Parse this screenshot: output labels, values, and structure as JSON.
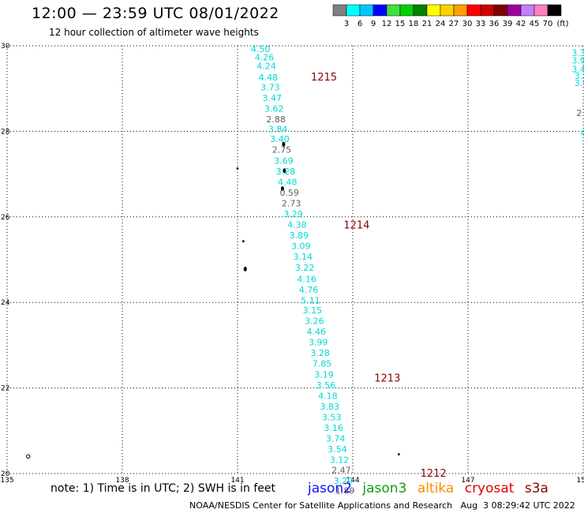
{
  "header": {
    "title": "12:00 — 23:59 UTC 08/01/2022",
    "subtitle": "12 hour collection of altimeter wave heights"
  },
  "colorbar": {
    "colors": [
      "#808080",
      "#00ffff",
      "#00c8ff",
      "#0000ff",
      "#40e040",
      "#00d000",
      "#008000",
      "#ffff00",
      "#ffd000",
      "#ffa000",
      "#ff0000",
      "#d00000",
      "#800000",
      "#a000a0",
      "#c080ff",
      "#ff80c0",
      "#000000"
    ],
    "labels": [
      "3",
      "6",
      "9",
      "12",
      "15",
      "18",
      "21",
      "24",
      "27",
      "30",
      "33",
      "36",
      "39",
      "42",
      "45",
      "70"
    ],
    "unit": "(ft)"
  },
  "map": {
    "lon_range": [
      135,
      150
    ],
    "lat_range": [
      20,
      30
    ],
    "lon_ticks": [
      "135",
      "138",
      "141",
      "144",
      "147",
      "150"
    ],
    "lat_ticks": [
      "20",
      "22",
      "24",
      "26",
      "28",
      "30"
    ],
    "colors": {
      "jason3_cyan": "#00d8d8",
      "gray": "#606060",
      "time_label": "#8b0000",
      "grid": "#000000"
    }
  },
  "track": {
    "values": [
      {
        "lon": 141.6,
        "lat": 29.93,
        "v": "4.50",
        "c": "cyan"
      },
      {
        "lon": 141.7,
        "lat": 29.73,
        "v": "4.26",
        "c": "cyan"
      },
      {
        "lon": 141.75,
        "lat": 29.53,
        "v": "4.24",
        "c": "cyan"
      },
      {
        "lon": 141.8,
        "lat": 29.26,
        "v": "4.48",
        "c": "cyan"
      },
      {
        "lon": 141.85,
        "lat": 29.03,
        "v": "3.73",
        "c": "cyan"
      },
      {
        "lon": 141.9,
        "lat": 28.78,
        "v": "3.47",
        "c": "cyan"
      },
      {
        "lon": 141.95,
        "lat": 28.53,
        "v": "3.62",
        "c": "cyan"
      },
      {
        "lon": 142.0,
        "lat": 28.28,
        "v": "2.88",
        "c": "gray"
      },
      {
        "lon": 142.05,
        "lat": 28.05,
        "v": "3.84",
        "c": "cyan"
      },
      {
        "lon": 142.1,
        "lat": 27.82,
        "v": "3.40",
        "c": "cyan"
      },
      {
        "lon": 142.15,
        "lat": 27.57,
        "v": "2.75",
        "c": "gray"
      },
      {
        "lon": 142.2,
        "lat": 27.32,
        "v": "3.69",
        "c": "cyan"
      },
      {
        "lon": 142.25,
        "lat": 27.07,
        "v": "3.28",
        "c": "cyan"
      },
      {
        "lon": 142.3,
        "lat": 26.82,
        "v": "4.48",
        "c": "cyan"
      },
      {
        "lon": 142.35,
        "lat": 26.57,
        "v": "0.59",
        "c": "gray"
      },
      {
        "lon": 142.4,
        "lat": 26.32,
        "v": "2.73",
        "c": "gray"
      },
      {
        "lon": 142.45,
        "lat": 26.07,
        "v": "3.29",
        "c": "cyan"
      },
      {
        "lon": 142.55,
        "lat": 25.82,
        "v": "4.38",
        "c": "cyan"
      },
      {
        "lon": 142.6,
        "lat": 25.57,
        "v": "3.89",
        "c": "cyan"
      },
      {
        "lon": 142.65,
        "lat": 25.32,
        "v": "3.09",
        "c": "cyan"
      },
      {
        "lon": 142.7,
        "lat": 25.07,
        "v": "3.14",
        "c": "cyan"
      },
      {
        "lon": 142.75,
        "lat": 24.82,
        "v": "3.22",
        "c": "cyan"
      },
      {
        "lon": 142.8,
        "lat": 24.55,
        "v": "4.16",
        "c": "cyan"
      },
      {
        "lon": 142.85,
        "lat": 24.3,
        "v": "4.76",
        "c": "cyan"
      },
      {
        "lon": 142.9,
        "lat": 24.05,
        "v": "5.11",
        "c": "cyan"
      },
      {
        "lon": 142.95,
        "lat": 23.82,
        "v": "3.15",
        "c": "cyan"
      },
      {
        "lon": 143.0,
        "lat": 23.57,
        "v": "3.26",
        "c": "cyan"
      },
      {
        "lon": 143.05,
        "lat": 23.32,
        "v": "4.46",
        "c": "cyan"
      },
      {
        "lon": 143.1,
        "lat": 23.07,
        "v": "3.99",
        "c": "cyan"
      },
      {
        "lon": 143.15,
        "lat": 22.82,
        "v": "3.28",
        "c": "cyan"
      },
      {
        "lon": 143.2,
        "lat": 22.57,
        "v": "7.85",
        "c": "cyan"
      },
      {
        "lon": 143.25,
        "lat": 22.32,
        "v": "3.19",
        "c": "cyan"
      },
      {
        "lon": 143.3,
        "lat": 22.07,
        "v": "3.56",
        "c": "cyan"
      },
      {
        "lon": 143.35,
        "lat": 21.82,
        "v": "4.18",
        "c": "cyan"
      },
      {
        "lon": 143.4,
        "lat": 21.57,
        "v": "3.83",
        "c": "cyan"
      },
      {
        "lon": 143.45,
        "lat": 21.32,
        "v": "3.53",
        "c": "cyan"
      },
      {
        "lon": 143.5,
        "lat": 21.07,
        "v": "3.16",
        "c": "cyan"
      },
      {
        "lon": 143.55,
        "lat": 20.82,
        "v": "3.74",
        "c": "cyan"
      },
      {
        "lon": 143.6,
        "lat": 20.57,
        "v": "3.54",
        "c": "cyan"
      },
      {
        "lon": 143.65,
        "lat": 20.32,
        "v": "3.12",
        "c": "cyan"
      },
      {
        "lon": 143.7,
        "lat": 20.08,
        "v": "2.47",
        "c": "gray"
      },
      {
        "lon": 143.75,
        "lat": 19.83,
        "v": "3.20",
        "c": "cyan"
      },
      {
        "lon": 143.8,
        "lat": 19.6,
        "v": "1.89",
        "c": "gray"
      }
    ],
    "time_labels": [
      {
        "lon": 143.25,
        "lat": 29.26,
        "v": "1215"
      },
      {
        "lon": 144.1,
        "lat": 25.8,
        "v": "1214"
      },
      {
        "lon": 144.9,
        "lat": 22.22,
        "v": "1213"
      },
      {
        "lon": 146.1,
        "lat": 20.0,
        "v": "1212"
      }
    ],
    "edge_values": [
      {
        "lon": 149.95,
        "lat": 29.83,
        "v": "3.34",
        "c": "cyan"
      },
      {
        "lon": 149.95,
        "lat": 29.66,
        "v": "3.91",
        "c": "cyan"
      },
      {
        "lon": 149.95,
        "lat": 29.46,
        "v": "3.41",
        "c": "cyan"
      },
      {
        "lon": 149.95,
        "lat": 29.3,
        "v": "3.2",
        "c": "cyan"
      },
      {
        "lon": 149.95,
        "lat": 29.13,
        "v": "3.9",
        "c": "cyan"
      },
      {
        "lon": 150.0,
        "lat": 28.43,
        "v": "2.3",
        "c": "gray"
      },
      {
        "lon": 150.1,
        "lat": 27.96,
        "v": "4.6",
        "c": "cyan"
      },
      {
        "lon": 150.1,
        "lat": 27.66,
        "v": "4.",
        "c": "cyan"
      },
      {
        "lon": 150.1,
        "lat": 27.26,
        "v": "3.",
        "c": "cyan"
      },
      {
        "lon": 150.1,
        "lat": 27.06,
        "v": "3.",
        "c": "cyan"
      },
      {
        "lon": 150.2,
        "lat": 26.42,
        "v": "6",
        "c": "cyan"
      },
      {
        "lon": 150.2,
        "lat": 26.2,
        "v": "3",
        "c": "cyan"
      }
    ]
  },
  "islands": [
    {
      "lon": 141.0,
      "lat": 27.13,
      "shape": "dot"
    },
    {
      "lon": 141.15,
      "lat": 25.43,
      "shape": "dot"
    },
    {
      "lon": 141.2,
      "lat": 24.78,
      "shape": "blob"
    },
    {
      "lon": 142.2,
      "lat": 27.7,
      "shape": "blob"
    },
    {
      "lon": 142.22,
      "lat": 27.08,
      "shape": "blob"
    },
    {
      "lon": 142.17,
      "lat": 26.66,
      "shape": "blob"
    },
    {
      "lon": 145.2,
      "lat": 20.45,
      "shape": "dot"
    },
    {
      "lon": 135.55,
      "lat": 20.4,
      "shape": "ring"
    }
  ],
  "footer": {
    "note": "note: 1) Time is in UTC; 2) SWH is in feet",
    "satellites": [
      "jason2",
      "jason3",
      "altika",
      "cryosat",
      "s3a"
    ],
    "credit": "NOAA/NESDIS Center for Satellite Applications and Research   Aug  3 08:29:42 UTC 2022"
  }
}
